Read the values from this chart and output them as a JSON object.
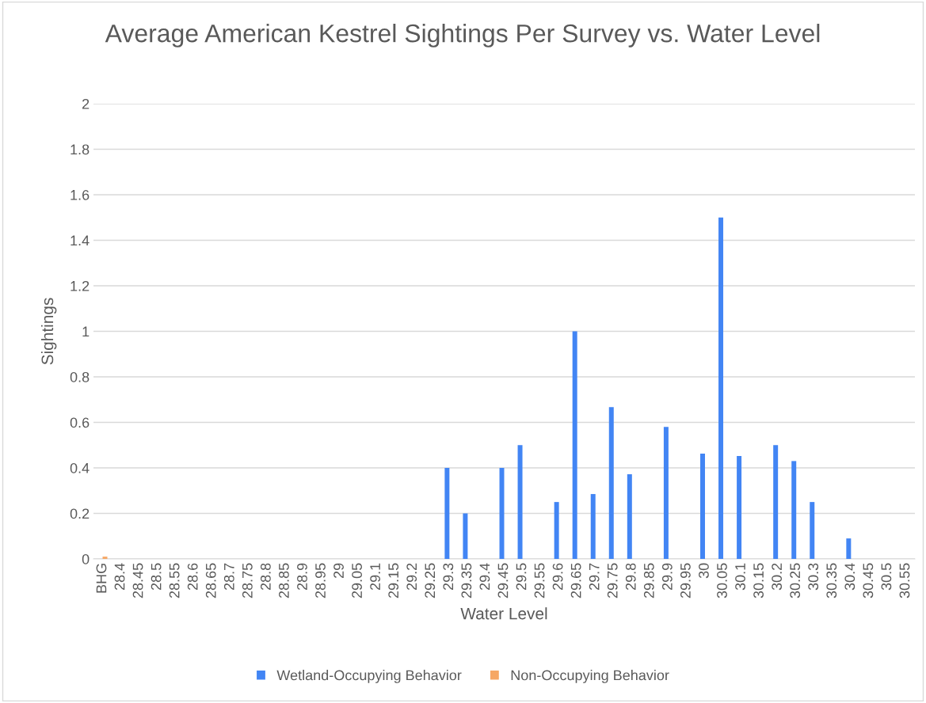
{
  "chart_data": {
    "type": "bar",
    "title": "Average American Kestrel Sightings Per Survey vs. Water Level",
    "xlabel": "Water Level",
    "ylabel": "Sightings",
    "categories": [
      "BHG",
      "28.4",
      "28.45",
      "28.5",
      "28.55",
      "28.6",
      "28.65",
      "28.7",
      "28.75",
      "28.8",
      "28.85",
      "28.9",
      "28.95",
      "29",
      "29.05",
      "29.1",
      "29.15",
      "29.2",
      "29.25",
      "29.3",
      "29.35",
      "29.4",
      "29.45",
      "29.5",
      "29.55",
      "29.6",
      "29.65",
      "29.7",
      "29.75",
      "29.8",
      "29.85",
      "29.9",
      "29.95",
      "30",
      "30.05",
      "30.1",
      "30.15",
      "30.2",
      "30.25",
      "30.3",
      "30.35",
      "30.4",
      "30.45",
      "30.5",
      "30.55"
    ],
    "series": [
      {
        "name": "Wetland-Occupying Behavior",
        "color": "#4285f4",
        "values": [
          null,
          null,
          null,
          null,
          null,
          null,
          null,
          null,
          null,
          null,
          null,
          null,
          null,
          null,
          null,
          null,
          null,
          null,
          null,
          0.4,
          0.2,
          null,
          0.4,
          0.5,
          null,
          0.25,
          1.0,
          0.285,
          0.667,
          0.372,
          null,
          0.58,
          null,
          0.463,
          1.5,
          0.452,
          null,
          0.5,
          0.43,
          0.25,
          null,
          0.09,
          null,
          null,
          null
        ]
      },
      {
        "name": "Non-Occupying Behavior",
        "color": "#f6a765",
        "values": [
          0.01,
          null,
          null,
          null,
          null,
          null,
          null,
          null,
          null,
          null,
          null,
          null,
          null,
          null,
          null,
          null,
          null,
          null,
          null,
          null,
          null,
          null,
          null,
          null,
          null,
          null,
          null,
          null,
          null,
          null,
          null,
          null,
          null,
          null,
          null,
          null,
          null,
          null,
          null,
          null,
          null,
          null,
          null,
          null,
          null
        ]
      }
    ],
    "ylim": [
      0,
      2
    ],
    "yticks": [
      0,
      0.2,
      0.4,
      0.6,
      0.8,
      1,
      1.2,
      1.4,
      1.6,
      1.8,
      2
    ],
    "grid": "y",
    "legend": "bottom"
  }
}
